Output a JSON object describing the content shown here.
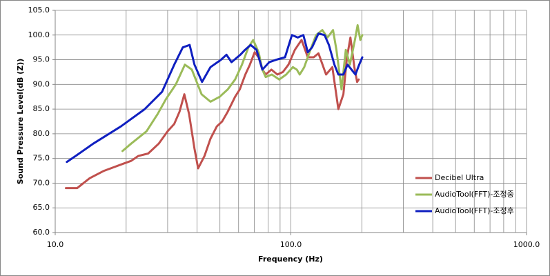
{
  "chart_data": {
    "type": "line",
    "x_label": "Frequency (Hz)",
    "y_label": "Sound Pressure Level(dB (Z))",
    "log_x": true,
    "grid": true,
    "minor_grid": true,
    "legend": "right",
    "xlim": [
      10,
      1000
    ],
    "xticks": [
      {
        "value": 10,
        "label": "10.0"
      },
      {
        "value": 100,
        "label": "100.0"
      },
      {
        "value": 1000,
        "label": "1000.0"
      }
    ],
    "ylim": [
      60,
      105
    ],
    "yticks": [
      {
        "value": 60,
        "label": "60.0"
      },
      {
        "value": 65,
        "label": "65.0"
      },
      {
        "value": 70,
        "label": "70.0"
      },
      {
        "value": 75,
        "label": "75.0"
      },
      {
        "value": 80,
        "label": "80.0"
      },
      {
        "value": 85,
        "label": "85.0"
      },
      {
        "value": 90,
        "label": "90.0"
      },
      {
        "value": 95,
        "label": "95.0"
      },
      {
        "value": 100,
        "label": "100.0"
      },
      {
        "value": 105,
        "label": "105.0"
      }
    ],
    "series": [
      {
        "name": "Decibel Ultra",
        "color": "#c0504d",
        "x": [
          11.1,
          12.4,
          14.0,
          16.1,
          19.6,
          21,
          22.5,
          24.8,
          27.5,
          30,
          32,
          33.7,
          35.3,
          37,
          39,
          40.4,
          43,
          45.6,
          48.5,
          51.1,
          54,
          58,
          60.7,
          64.1,
          67,
          70.2,
          73,
          75.7,
          78.2,
          82.7,
          87.6,
          92.5,
          97.7,
          104,
          111,
          118,
          125,
          131,
          141,
          150,
          159,
          167,
          173,
          179,
          186,
          191,
          194
        ],
        "values": [
          69,
          69,
          71,
          72.5,
          74,
          74.5,
          75.5,
          76,
          78,
          80.5,
          82,
          84.5,
          88,
          84,
          77,
          73,
          75.5,
          79,
          81.5,
          82.5,
          84.5,
          87.5,
          89,
          92,
          94,
          96.5,
          95.5,
          93,
          92,
          93,
          92,
          92.5,
          94,
          97,
          99,
          95.5,
          95.5,
          96.3,
          92,
          93.5,
          85,
          88,
          95.5,
          99.5,
          93.5,
          90.5,
          91
        ]
      },
      {
        "name": "AudioTool(FFT)-조정중",
        "color": "#9bbb59",
        "x": [
          19.3,
          21,
          24.4,
          27.2,
          29.5,
          32.5,
          35.5,
          38,
          41.8,
          45.6,
          49.9,
          54,
          58,
          62,
          66,
          69.2,
          73,
          75.7,
          78.2,
          83,
          89.3,
          95.5,
          102,
          106,
          109,
          114,
          121,
          128,
          136,
          143,
          151,
          156,
          164,
          171,
          178,
          187,
          192,
          197,
          201
        ],
        "values": [
          76.5,
          78,
          80.5,
          84,
          87,
          90,
          94,
          93,
          88,
          86.5,
          87.5,
          89,
          91,
          94,
          97.5,
          99,
          96.5,
          93,
          91.5,
          92,
          91,
          92,
          93.5,
          93,
          92,
          93.5,
          97,
          100,
          101,
          99.5,
          101,
          97,
          89,
          97,
          94,
          99,
          102,
          99,
          100
        ]
      },
      {
        "name": "AudioTool(FFT)-조정후",
        "color": "#0f1fc0",
        "x": [
          11.2,
          12.2,
          14.5,
          19.0,
          24.0,
          28.4,
          32,
          34.8,
          37.2,
          39,
          42,
          45.6,
          50.5,
          53.3,
          56,
          61,
          63.9,
          67.5,
          71.5,
          75.7,
          81,
          86.7,
          94.4,
          101,
          107,
          113,
          118,
          123,
          131,
          139,
          145,
          153,
          159,
          167,
          174,
          188,
          195,
          201
        ],
        "values": [
          74.3,
          75.5,
          78,
          81.5,
          85,
          88.5,
          94,
          97.5,
          98,
          94,
          90.5,
          93.5,
          95,
          96,
          94.5,
          96,
          97,
          98,
          97,
          93,
          94.5,
          95,
          95.5,
          100,
          99.5,
          100,
          96.5,
          97.5,
          100.3,
          100,
          98,
          94,
          92,
          92,
          94,
          92,
          94,
          95.5
        ]
      }
    ]
  }
}
